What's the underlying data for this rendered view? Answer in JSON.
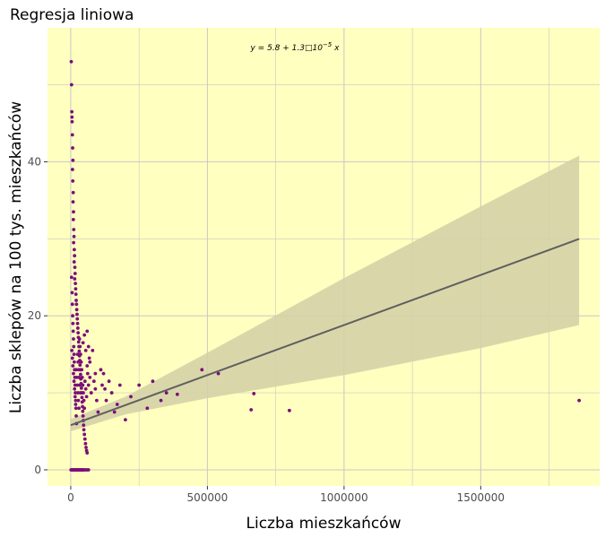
{
  "chart_data": {
    "type": "scatter",
    "title": "Regresja liniowa",
    "xlabel": "Liczba mieszkańców",
    "ylabel": "Liczba sklepów na 100 tys. mieszkańców",
    "xlim": [
      -85000,
      1935000
    ],
    "ylim": [
      -2.1,
      57.4
    ],
    "x_ticks": [
      0,
      500000,
      1000000,
      1500000
    ],
    "x_tick_labels": [
      "0",
      "500000",
      "1000000",
      "1500000"
    ],
    "y_ticks": [
      0,
      20,
      40
    ],
    "y_tick_labels": [
      "0",
      "20",
      "40"
    ],
    "grid": true,
    "legend": "none",
    "colors": {
      "panel": "#ffffbf",
      "grid": "#c8c8c8",
      "points": "#7a0f7a",
      "line": "#5f5f5f",
      "band": "#d2d0a6"
    },
    "equation": {
      "text": "y = 5.8 + 1.3□10",
      "exponent": "−5",
      "suffix": " x",
      "x": 820000,
      "y": 54.5
    },
    "regression": {
      "intercept": 5.8,
      "slope": 1.3e-05,
      "x_range": [
        0,
        1860000
      ],
      "band": [
        {
          "x": 0,
          "lower": 5.0,
          "upper": 6.6
        },
        {
          "x": 200000,
          "lower": 7.2,
          "upper": 9.5
        },
        {
          "x": 500000,
          "lower": 9.3,
          "upper": 15.2
        },
        {
          "x": 1000000,
          "lower": 12.3,
          "upper": 24.9
        },
        {
          "x": 1500000,
          "lower": 15.8,
          "upper": 34.2
        },
        {
          "x": 1860000,
          "lower": 18.8,
          "upper": 40.8
        }
      ]
    },
    "points": [
      [
        2000,
        53.0
      ],
      [
        3000,
        50.0
      ],
      [
        4000,
        46.5
      ],
      [
        4500,
        45.8
      ],
      [
        5000,
        45.2
      ],
      [
        6000,
        43.5
      ],
      [
        7000,
        41.8
      ],
      [
        8000,
        40.2
      ],
      [
        6500,
        39.0
      ],
      [
        7500,
        37.5
      ],
      [
        9000,
        36.0
      ],
      [
        8500,
        34.8
      ],
      [
        10000,
        33.5
      ],
      [
        9500,
        32.5
      ],
      [
        11000,
        31.2
      ],
      [
        12000,
        30.3
      ],
      [
        10500,
        29.5
      ],
      [
        13000,
        28.6
      ],
      [
        14000,
        27.8
      ],
      [
        12500,
        27.0
      ],
      [
        15000,
        26.3
      ],
      [
        16000,
        25.5
      ],
      [
        14500,
        24.8
      ],
      [
        17000,
        24.2
      ],
      [
        18000,
        23.5
      ],
      [
        19000,
        22.8
      ],
      [
        20000,
        22.0
      ],
      [
        21000,
        21.5
      ],
      [
        22000,
        20.8
      ],
      [
        23000,
        20.2
      ],
      [
        24000,
        19.6
      ],
      [
        25000,
        19.0
      ],
      [
        26000,
        18.4
      ],
      [
        27000,
        17.8
      ],
      [
        28000,
        17.2
      ],
      [
        29000,
        16.6
      ],
      [
        30000,
        16.0
      ],
      [
        31000,
        15.4
      ],
      [
        32000,
        14.8
      ],
      [
        33000,
        14.2
      ],
      [
        34000,
        13.6
      ],
      [
        35000,
        13.0
      ],
      [
        36000,
        12.4
      ],
      [
        37000,
        11.8
      ],
      [
        38000,
        11.2
      ],
      [
        39000,
        10.6
      ],
      [
        40000,
        10.0
      ],
      [
        41000,
        9.4
      ],
      [
        42000,
        8.8
      ],
      [
        43000,
        8.2
      ],
      [
        44000,
        7.6
      ],
      [
        45000,
        7.0
      ],
      [
        46000,
        6.4
      ],
      [
        47000,
        5.8
      ],
      [
        48000,
        5.2
      ],
      [
        50000,
        4.6
      ],
      [
        52000,
        4.0
      ],
      [
        54000,
        3.4
      ],
      [
        56000,
        2.9
      ],
      [
        58000,
        2.5
      ],
      [
        60000,
        2.2
      ],
      [
        3000,
        25.0
      ],
      [
        5000,
        23.0
      ],
      [
        6000,
        21.5
      ],
      [
        7000,
        20.0
      ],
      [
        8000,
        19.0
      ],
      [
        9000,
        18.0
      ],
      [
        10000,
        17.0
      ],
      [
        11000,
        16.0
      ],
      [
        12000,
        15.0
      ],
      [
        13000,
        14.0
      ],
      [
        14000,
        13.0
      ],
      [
        15000,
        12.0
      ],
      [
        16000,
        11.0
      ],
      [
        17000,
        10.0
      ],
      [
        18000,
        9.0
      ],
      [
        19000,
        8.0
      ],
      [
        20000,
        7.0
      ],
      [
        21000,
        6.0
      ],
      [
        4000,
        15.5
      ],
      [
        6000,
        14.5
      ],
      [
        8000,
        13.5
      ],
      [
        10000,
        12.5
      ],
      [
        12000,
        11.5
      ],
      [
        14000,
        10.5
      ],
      [
        16000,
        9.5
      ],
      [
        18000,
        8.5
      ],
      [
        20000,
        13.0
      ],
      [
        22000,
        12.0
      ],
      [
        24000,
        11.0
      ],
      [
        26000,
        10.0
      ],
      [
        28000,
        9.0
      ],
      [
        30000,
        8.0
      ],
      [
        25000,
        15.0
      ],
      [
        27000,
        14.0
      ],
      [
        29000,
        13.0
      ],
      [
        31000,
        12.0
      ],
      [
        33000,
        11.0
      ],
      [
        35000,
        10.0
      ],
      [
        32000,
        17.0
      ],
      [
        34000,
        16.0
      ],
      [
        36000,
        15.0
      ],
      [
        38000,
        14.0
      ],
      [
        40000,
        13.0
      ],
      [
        42000,
        12.0
      ],
      [
        44000,
        11.0
      ],
      [
        46000,
        10.0
      ],
      [
        48000,
        9.0
      ],
      [
        50000,
        8.0
      ],
      [
        52000,
        11.5
      ],
      [
        55000,
        10.5
      ],
      [
        58000,
        9.5
      ],
      [
        60000,
        13.5
      ],
      [
        62000,
        12.5
      ],
      [
        65000,
        11.0
      ],
      [
        68000,
        14.5
      ],
      [
        70000,
        12.0
      ],
      [
        75000,
        10.0
      ],
      [
        80000,
        15.5
      ],
      [
        85000,
        11.5
      ],
      [
        90000,
        12.5
      ],
      [
        45000,
        16.5
      ],
      [
        50000,
        17.5
      ],
      [
        55000,
        15.5
      ],
      [
        60000,
        18.0
      ],
      [
        65000,
        16.0
      ],
      [
        70000,
        14.0
      ],
      [
        90000,
        10.5
      ],
      [
        95000,
        9.0
      ],
      [
        100000,
        7.5
      ],
      [
        110000,
        13.0
      ],
      [
        115000,
        11.0
      ],
      [
        120000,
        12.5
      ],
      [
        125000,
        10.5
      ],
      [
        130000,
        9.0
      ],
      [
        140000,
        11.5
      ],
      [
        150000,
        10.0
      ],
      [
        160000,
        7.5
      ],
      [
        170000,
        8.5
      ],
      [
        180000,
        11.0
      ],
      [
        200000,
        6.5
      ],
      [
        220000,
        9.5
      ],
      [
        250000,
        11.0
      ],
      [
        280000,
        8.0
      ],
      [
        300000,
        11.5
      ],
      [
        330000,
        9.0
      ],
      [
        350000,
        10.0
      ],
      [
        390000,
        9.8
      ],
      [
        480000,
        13.0
      ],
      [
        540000,
        12.5
      ],
      [
        660000,
        7.8
      ],
      [
        670000,
        9.9
      ],
      [
        800000,
        7.7
      ],
      [
        1860000,
        9.0
      ],
      [
        1000,
        0
      ],
      [
        3000,
        0
      ],
      [
        5000,
        0
      ],
      [
        7000,
        0
      ],
      [
        9000,
        0
      ],
      [
        11000,
        0
      ],
      [
        13000,
        0
      ],
      [
        15000,
        0
      ],
      [
        17000,
        0
      ],
      [
        19000,
        0
      ],
      [
        21000,
        0
      ],
      [
        23000,
        0
      ],
      [
        25000,
        0
      ],
      [
        27000,
        0
      ],
      [
        29000,
        0
      ],
      [
        31000,
        0
      ],
      [
        33000,
        0
      ],
      [
        35000,
        0
      ],
      [
        37000,
        0
      ],
      [
        39000,
        0
      ],
      [
        41000,
        0
      ],
      [
        43000,
        0
      ],
      [
        45000,
        0
      ],
      [
        47000,
        0
      ],
      [
        50000,
        0
      ],
      [
        55000,
        0
      ],
      [
        60000,
        0
      ],
      [
        65000,
        0
      ]
    ]
  }
}
